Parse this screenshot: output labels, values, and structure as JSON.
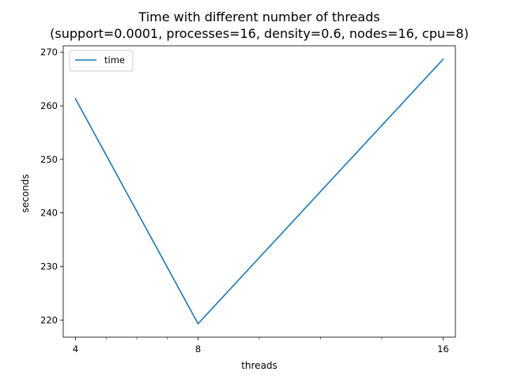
{
  "chart_data": {
    "type": "line",
    "title": "Time with different number of threads",
    "subtitle": "(support=0.0001, processes=16, density=0.6, nodes=16, cpu=8)",
    "xlabel": "threads",
    "ylabel": "seconds",
    "x": [
      4,
      8,
      16
    ],
    "x_ticks": [
      4,
      8,
      16
    ],
    "xlim": [
      3.6,
      16.4
    ],
    "ylim": [
      216.8,
      271.2
    ],
    "y_ticks": [
      220,
      230,
      240,
      250,
      260,
      270
    ],
    "series": [
      {
        "name": "time",
        "values": [
          261.3,
          219.3,
          268.7
        ],
        "color": "#1f77b4"
      }
    ],
    "grid": false,
    "legend": "top-left"
  }
}
